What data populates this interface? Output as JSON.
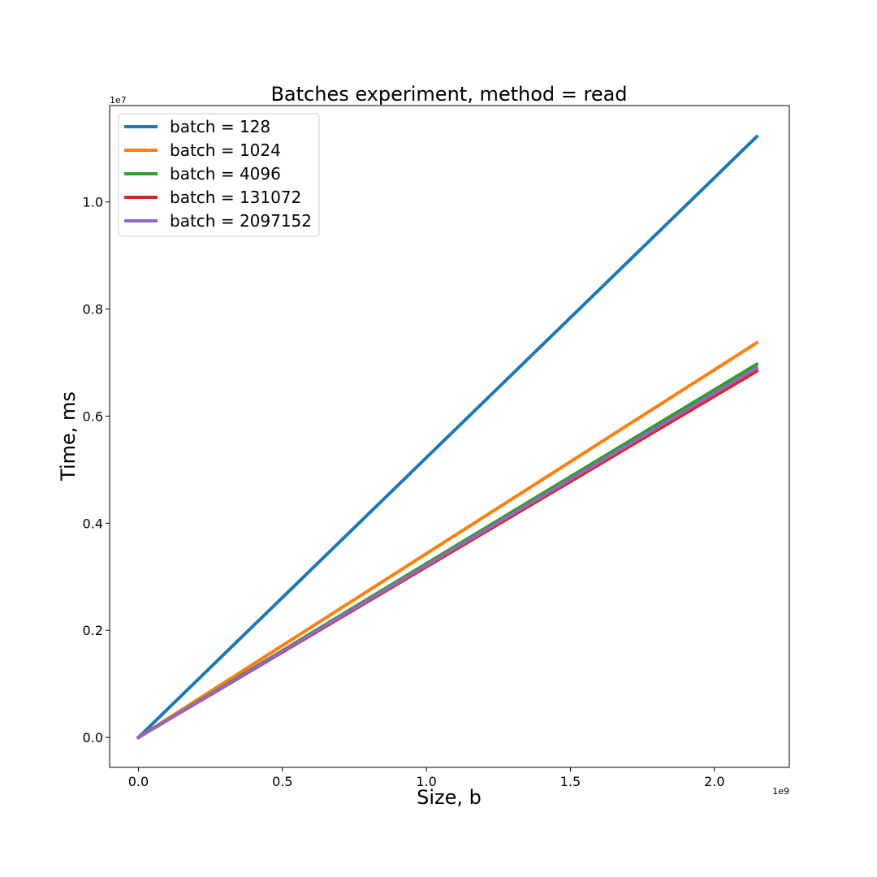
{
  "chart_data": {
    "type": "line",
    "title": "Batches experiment, method = read",
    "xlabel": "Size, b",
    "ylabel": "Time, ms",
    "x_offset_label": "1e9",
    "y_offset_label": "1e7",
    "xlim": [
      -0.1,
      2.26
    ],
    "ylim": [
      -0.056,
      1.18
    ],
    "x_ticks": [
      0.0,
      0.5,
      1.0,
      1.5,
      2.0
    ],
    "x_tick_labels": [
      "0.0",
      "0.5",
      "1.0",
      "1.5",
      "2.0"
    ],
    "y_ticks": [
      0.0,
      0.2,
      0.4,
      0.6,
      0.8,
      1.0
    ],
    "y_tick_labels": [
      "0.0",
      "0.2",
      "0.4",
      "0.6",
      "0.8",
      "1.0"
    ],
    "grid": false,
    "legend_position": "top-left",
    "series": [
      {
        "name": "batch = 128",
        "color": "#1f77b4",
        "x": [
          0.0,
          2.147
        ],
        "y": [
          0.0,
          1.122
        ]
      },
      {
        "name": "batch = 1024",
        "color": "#ff7f0e",
        "x": [
          0.0,
          2.147
        ],
        "y": [
          0.0,
          0.737
        ]
      },
      {
        "name": "batch = 4096",
        "color": "#2ca02c",
        "x": [
          0.0,
          2.147
        ],
        "y": [
          0.0,
          0.697
        ]
      },
      {
        "name": "batch = 131072",
        "color": "#d62728",
        "x": [
          0.0,
          2.147
        ],
        "y": [
          0.0,
          0.684
        ]
      },
      {
        "name": "batch = 2097152",
        "color": "#9467bd",
        "x": [
          0.0,
          2.147
        ],
        "y": [
          0.0,
          0.69
        ]
      }
    ]
  }
}
